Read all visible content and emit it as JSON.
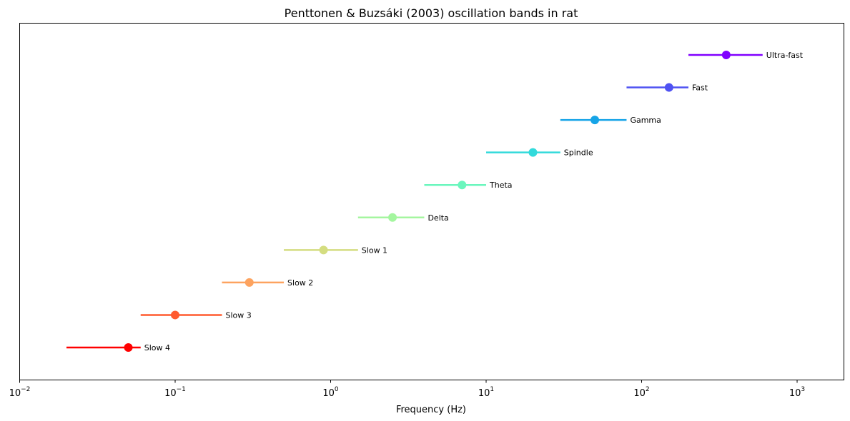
{
  "chart_data": {
    "type": "scatter",
    "title": "Penttonen & Buzsáki (2003) oscillation bands in rat",
    "xlabel": "Frequency (Hz)",
    "ylabel": "",
    "xscale": "log",
    "xlim": [
      0.01,
      2000
    ],
    "x_ticks": [
      {
        "value": 0.01,
        "base": "10",
        "exp": "−2"
      },
      {
        "value": 0.1,
        "base": "10",
        "exp": "−1"
      },
      {
        "value": 1,
        "base": "10",
        "exp": "0"
      },
      {
        "value": 10,
        "base": "10",
        "exp": "1"
      },
      {
        "value": 100,
        "base": "10",
        "exp": "2"
      },
      {
        "value": 1000,
        "base": "10",
        "exp": "3"
      }
    ],
    "grid": false,
    "bands": [
      {
        "label": "Slow 4",
        "low": 0.02,
        "high": 0.06,
        "center": 0.05,
        "color": "#ff0000"
      },
      {
        "label": "Slow 3",
        "low": 0.06,
        "high": 0.2,
        "center": 0.1,
        "color": "#ff5a2f"
      },
      {
        "label": "Slow 2",
        "low": 0.2,
        "high": 0.5,
        "center": 0.3,
        "color": "#fda35f"
      },
      {
        "label": "Slow 1",
        "low": 0.5,
        "high": 1.5,
        "center": 0.9,
        "color": "#d4dd80"
      },
      {
        "label": "Delta",
        "low": 1.5,
        "high": 4,
        "center": 2.5,
        "color": "#a4f69f"
      },
      {
        "label": "Theta",
        "low": 4,
        "high": 10,
        "center": 7,
        "color": "#6af6bd"
      },
      {
        "label": "Spindle",
        "low": 10,
        "high": 30,
        "center": 20,
        "color": "#32dadb"
      },
      {
        "label": "Gamma",
        "low": 30,
        "high": 80,
        "center": 50,
        "color": "#16a4e7"
      },
      {
        "label": "Fast",
        "low": 80,
        "high": 200,
        "center": 150,
        "color": "#4f52f2"
      },
      {
        "label": "Ultra-fast",
        "low": 200,
        "high": 600,
        "center": 350,
        "color": "#8000ff"
      }
    ]
  }
}
